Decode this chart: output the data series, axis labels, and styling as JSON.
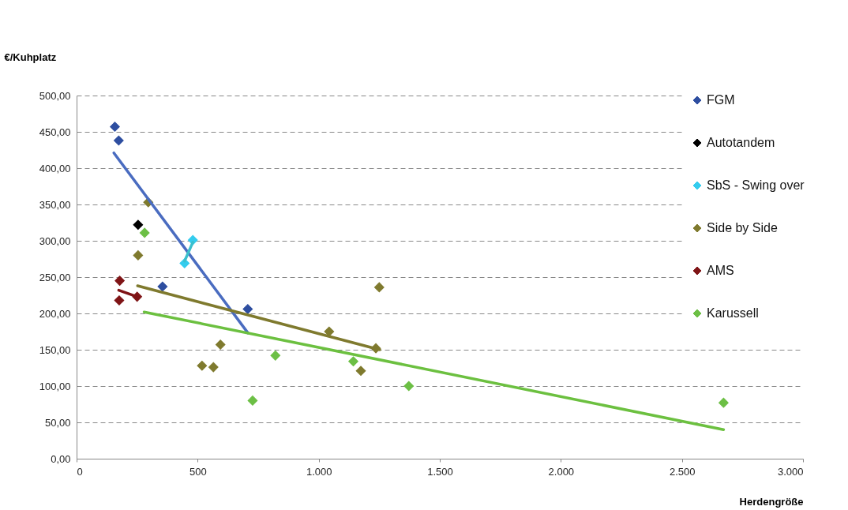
{
  "chart_data": {
    "type": "scatter",
    "xlabel": "Herdengröße",
    "ylabel": "€/Kuhplatz",
    "xlim": [
      0,
      3000
    ],
    "xticks": [
      0,
      500,
      {
        "value": 1000,
        "label": "1.000"
      },
      {
        "value": 1500,
        "label": "1.500"
      },
      {
        "value": 2000,
        "label": "2.000"
      },
      {
        "value": 2500,
        "label": "2.500"
      },
      {
        "value": 3000,
        "label": "3.000"
      }
    ],
    "ylim": [
      0,
      500
    ],
    "yticks": [
      {
        "value": 0,
        "label": "0,00"
      },
      {
        "value": 50,
        "label": "50,00"
      },
      {
        "value": 100,
        "label": "100,00"
      },
      {
        "value": 150,
        "label": "150,00"
      },
      {
        "value": 200,
        "label": "200,00"
      },
      {
        "value": 250,
        "label": "250,00"
      },
      {
        "value": 300,
        "label": "300,00"
      },
      {
        "value": 350,
        "label": "350,00"
      },
      {
        "value": 400,
        "label": "400,00"
      },
      {
        "value": 450,
        "label": "450,00"
      },
      {
        "value": 500,
        "label": "500,00"
      }
    ],
    "grid": "y",
    "legend": "top right",
    "marker": "diamond",
    "series": [
      {
        "name": "FGM",
        "color": "#2e4ea0",
        "x": [
          158,
          174,
          355,
          707
        ],
        "values": [
          457,
          438,
          237,
          206
        ]
      },
      {
        "name": "Autotandem",
        "color": "#000000",
        "x": [
          254
        ],
        "values": [
          322
        ]
      },
      {
        "name": "SbS - Swing over",
        "color": "#33ccee",
        "x": [
          446,
          480
        ],
        "values": [
          269,
          301
        ]
      },
      {
        "name": "Side by Side",
        "color": "#7f7a2e",
        "x": [
          296,
          254,
          518,
          565,
          594,
          1043,
          1174,
          1236,
          1250
        ],
        "values": [
          353,
          280,
          128,
          126,
          157,
          175,
          121,
          152,
          236
        ]
      },
      {
        "name": "AMS",
        "color": "#7f1416",
        "x": [
          178,
          176,
          250
        ],
        "values": [
          245,
          218,
          223
        ]
      },
      {
        "name": "Karussell",
        "color": "#6cbf45",
        "x": [
          281,
          727,
          821,
          1143,
          1372,
          2672
        ],
        "values": [
          311,
          80,
          142,
          134,
          100,
          77
        ]
      },
      {
        "type": "line",
        "marker": "none",
        "color": "#4a6cc0",
        "x": [
          154,
          708
        ],
        "values": [
          421,
          173
        ]
      },
      {
        "type": "line",
        "marker": "none",
        "color": "#3bbfcc",
        "x": [
          446,
          480
        ],
        "values": [
          272,
          298
        ]
      },
      {
        "type": "line",
        "marker": "none",
        "color": "#7f7a2e",
        "x": [
          252,
          1252
        ],
        "values": [
          238,
          150
        ]
      },
      {
        "type": "line",
        "marker": "none",
        "color": "#7f1416",
        "x": [
          174,
          241
        ],
        "values": [
          232,
          224
        ]
      },
      {
        "type": "line",
        "marker": "none",
        "color": "#6cc040",
        "x": [
          279,
          2672
        ],
        "values": [
          202,
          40
        ]
      }
    ]
  }
}
